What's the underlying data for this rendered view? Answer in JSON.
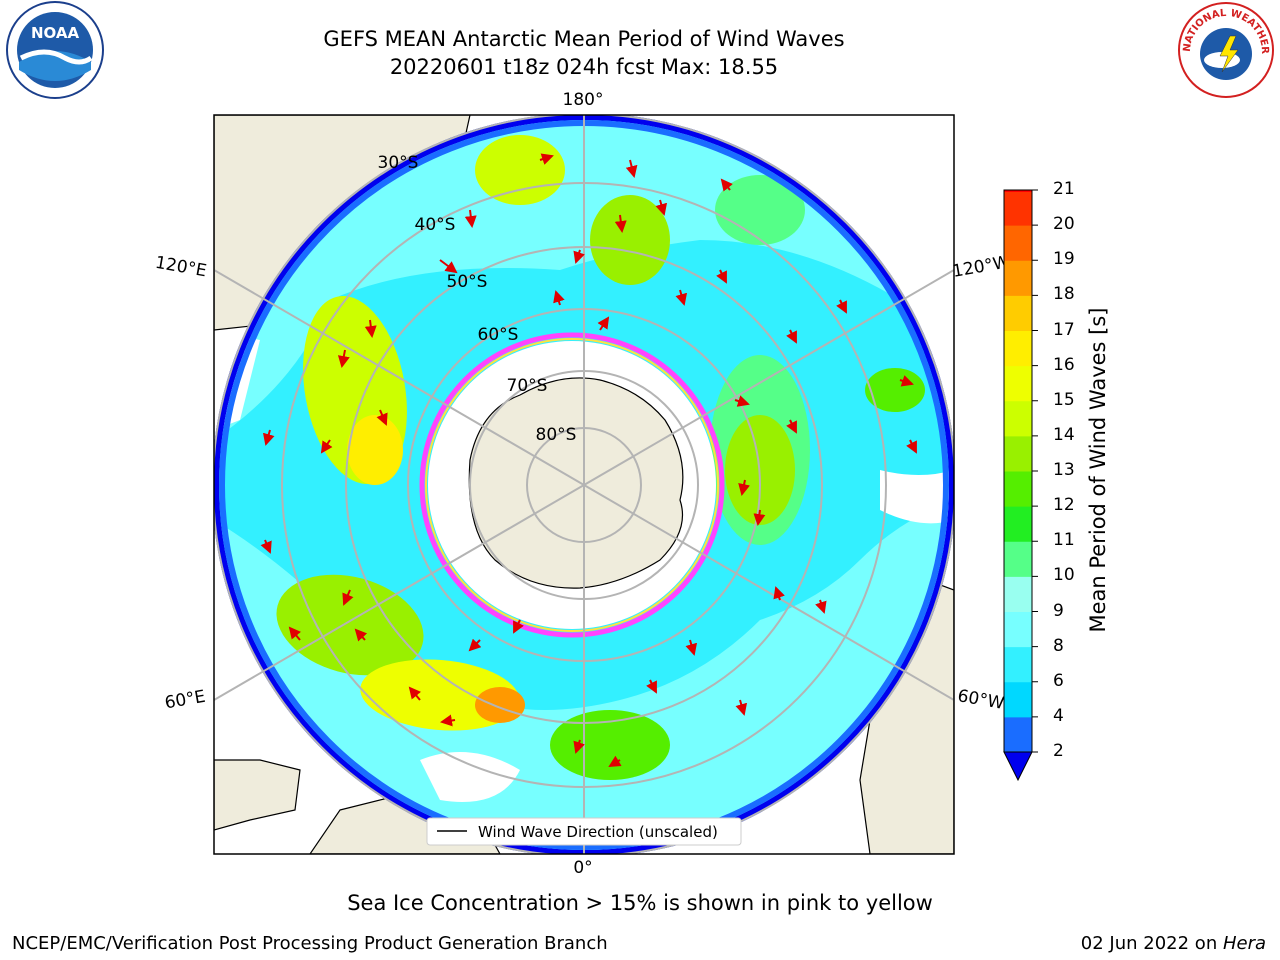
{
  "header": {
    "title_line1": "GEFS MEAN Antarctic Mean Period of Wind Waves",
    "title_line2": "20220601 t18z 024h fcst   Max: 18.55"
  },
  "map": {
    "projection": "south-polar-stereographic",
    "longitude_labels": [
      "180°",
      "120°E",
      "120°W",
      "60°E",
      "60°W",
      "0°"
    ],
    "latitude_labels": [
      "30°S",
      "40°S",
      "50°S",
      "60°S",
      "70°S",
      "80°S"
    ],
    "legend_label": "Wind Wave Direction (unscaled)",
    "vector_color": "#e00000",
    "land_color": "#efecdc",
    "sea_ice_colors": [
      "#ff44ff",
      "#ffe040"
    ]
  },
  "colorbar": {
    "title": "Mean Period of Wind Waves [s]",
    "tick_labels": [
      "2",
      "4",
      "6",
      "8",
      "9",
      "10",
      "11",
      "12",
      "13",
      "14",
      "15",
      "16",
      "17",
      "18",
      "19",
      "20",
      "21"
    ],
    "levels": [
      2,
      4,
      6,
      8,
      9,
      10,
      11,
      12,
      13,
      14,
      15,
      16,
      17,
      18,
      19,
      20,
      21
    ],
    "colors": [
      "#1a6dff",
      "#00d8ff",
      "#33f0ff",
      "#77ffff",
      "#99fff0",
      "#55ff88",
      "#22ee22",
      "#55ee00",
      "#99f000",
      "#ccff00",
      "#eeff00",
      "#ffee00",
      "#ffcc00",
      "#ff9900",
      "#ff6600",
      "#ff3300",
      "#ff0000"
    ],
    "under_color": "#0000ee"
  },
  "footer": {
    "note": "Sea Ice Concentration > 15% is shown in pink to yellow",
    "left": "NCEP/EMC/Verification Post Processing Product Generation Branch",
    "right_date": "02 Jun 2022 on ",
    "right_host": "Hera"
  },
  "logos": {
    "noaa_text": "NOAA",
    "nws_text": "NATIONAL WEATHER SERVICE"
  }
}
